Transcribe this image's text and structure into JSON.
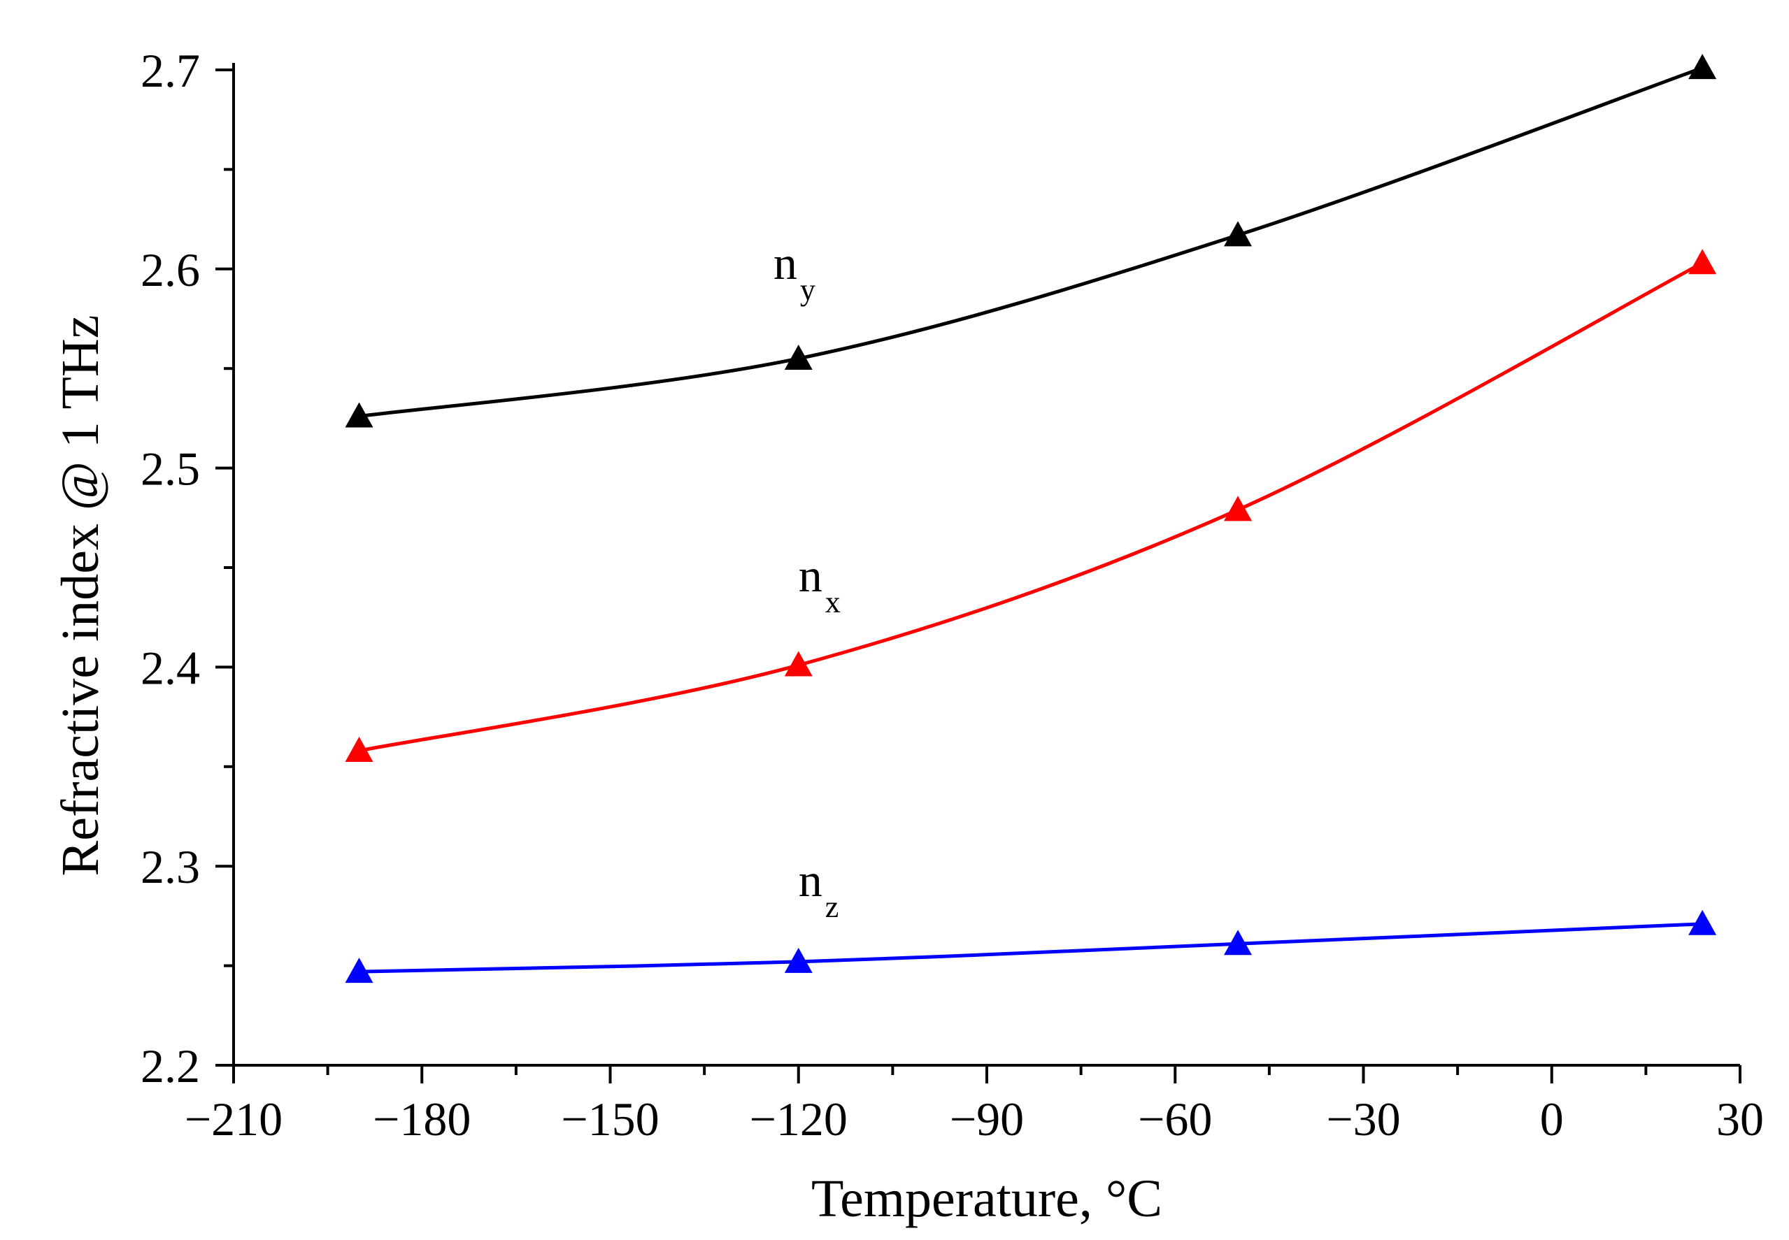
{
  "chart_data": {
    "type": "line",
    "title": "",
    "xlabel": "Temperature, °C",
    "ylabel": "Refractive index @ 1 THz",
    "xlim": [
      -210,
      30
    ],
    "ylim": [
      2.2,
      2.7
    ],
    "xticks": [
      -210,
      -180,
      -150,
      -120,
      -90,
      -60,
      -30,
      0,
      30
    ],
    "xtick_labels": [
      "−210",
      "−180",
      "−150",
      "−120",
      "−90",
      "−60",
      "−30",
      "0",
      "30"
    ],
    "yticks": [
      2.2,
      2.3,
      2.4,
      2.5,
      2.6,
      2.7
    ],
    "ytick_labels": [
      "2.2",
      "2.3",
      "2.4",
      "2.5",
      "2.6",
      "2.7"
    ],
    "grid": false,
    "marker": "triangle",
    "x": [
      -190,
      -120,
      -50,
      24
    ],
    "series": [
      {
        "name": "ny",
        "label_main": "n",
        "label_sub": "y",
        "color": "#000000",
        "values": [
          2.526,
          2.555,
          2.617,
          2.701
        ],
        "label_at": [
          -124,
          2.595
        ]
      },
      {
        "name": "nx",
        "label_main": "n",
        "label_sub": "x",
        "color": "#ff0000",
        "values": [
          2.358,
          2.401,
          2.479,
          2.603
        ],
        "label_at": [
          -120,
          2.438
        ]
      },
      {
        "name": "nz",
        "label_main": "n",
        "label_sub": "z",
        "color": "#0000ff",
        "values": [
          2.247,
          2.252,
          2.261,
          2.271
        ],
        "label_at": [
          -120,
          2.285
        ]
      }
    ]
  }
}
